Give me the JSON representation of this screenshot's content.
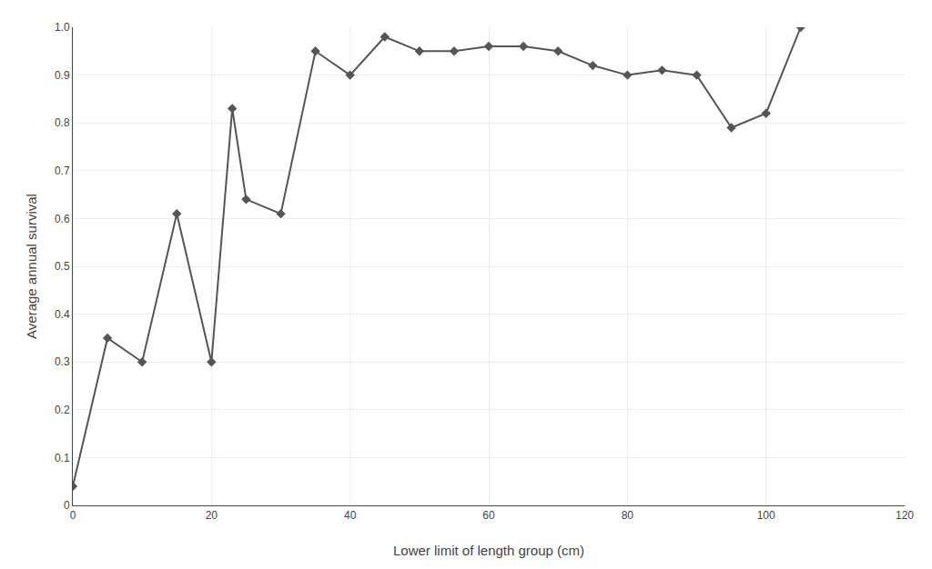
{
  "chart_data": {
    "type": "line",
    "x": [
      0,
      5,
      10,
      15,
      20,
      23,
      25,
      30,
      35,
      40,
      45,
      50,
      55,
      60,
      65,
      70,
      75,
      80,
      85,
      90,
      95,
      100,
      105
    ],
    "values": [
      0.04,
      0.35,
      0.3,
      0.61,
      0.3,
      0.83,
      0.64,
      0.61,
      0.95,
      0.9,
      0.98,
      0.95,
      0.95,
      0.96,
      0.96,
      0.95,
      0.92,
      0.9,
      0.91,
      0.9,
      0.79,
      0.82,
      1.0
    ],
    "xlabel": "Lower limit of length group (cm)",
    "ylabel": "Average annual survival",
    "xlim": [
      0,
      120
    ],
    "ylim": [
      0,
      1.0
    ],
    "xticks": [
      0,
      20,
      40,
      60,
      80,
      100,
      120
    ],
    "yticks": [
      0,
      0.1,
      0.2,
      0.3,
      0.4,
      0.5,
      0.6,
      0.7,
      0.8,
      0.9,
      {
        "value": 1.0,
        "label": "1.0"
      }
    ],
    "color": "#555555",
    "marker": "diamond",
    "grid": true
  }
}
